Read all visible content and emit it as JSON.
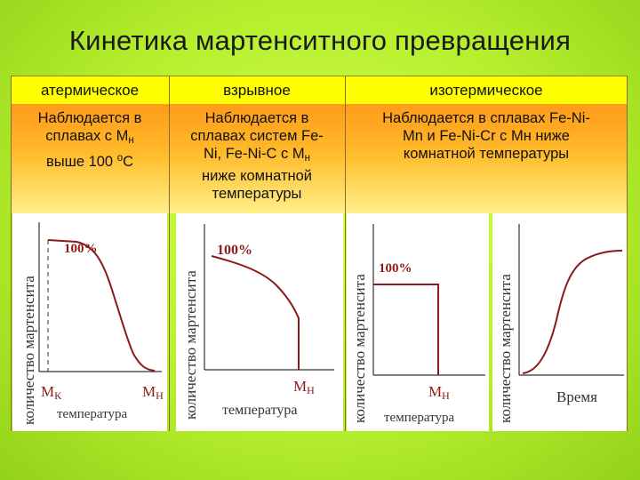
{
  "title": "Кинетика мартенситного превращения",
  "columns": [
    {
      "header": "атермическое",
      "desc_lines": [
        "Наблюдается в",
        "сплавах с М",
        "выше 100 ",
        "С"
      ],
      "desc_sub": "н",
      "desc_sup": "o"
    },
    {
      "header": "взрывное",
      "desc_lines": [
        "Наблюдается в",
        "сплавах систем Fe-",
        "Ni, Fe-Ni-C с М",
        "ниже комнатной",
        "температуры"
      ],
      "desc_sub": "н"
    },
    {
      "header": "изотермическое",
      "desc_lines": [
        "Наблюдается в сплавах Fe-Ni-",
        "Mn и Fe-Ni-Cr с Мн ниже",
        "комнатной температуры"
      ]
    }
  ],
  "graphs": {
    "y_label": "количество мартенсита",
    "x_label_temperature": "температура",
    "x_label_time": "Время",
    "full_label": "100%",
    "mk_label": "М",
    "mk_sub": "К",
    "mn_label": "М",
    "mn_sub": "Н"
  },
  "colors": {
    "curve": "#8b1a1a",
    "header_bg": "#ffff00",
    "desc_top": "#ff9a1a",
    "desc_bottom": "#fff08a"
  }
}
